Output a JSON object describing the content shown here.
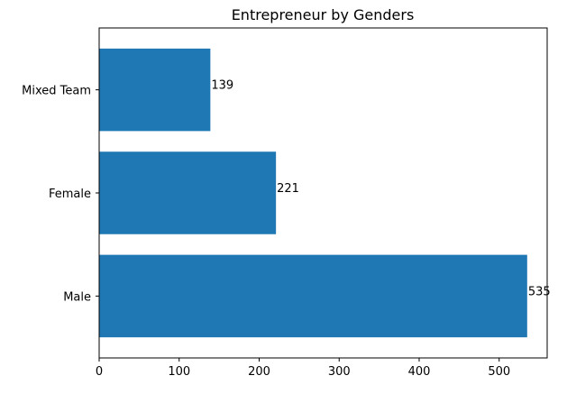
{
  "chart_data": {
    "type": "bar",
    "orientation": "horizontal",
    "title": "Entrepreneur by Genders",
    "xlabel": "",
    "ylabel": "",
    "categories": [
      "Male",
      "Female",
      "Mixed Team"
    ],
    "values": [
      535,
      221,
      139
    ],
    "data_labels": [
      "535",
      "221",
      "139"
    ],
    "xlim": [
      0,
      560
    ],
    "xticks": [
      0,
      100,
      200,
      300,
      400,
      500
    ],
    "grid": false,
    "legend": "none",
    "bar_color": "#1f77b4"
  }
}
